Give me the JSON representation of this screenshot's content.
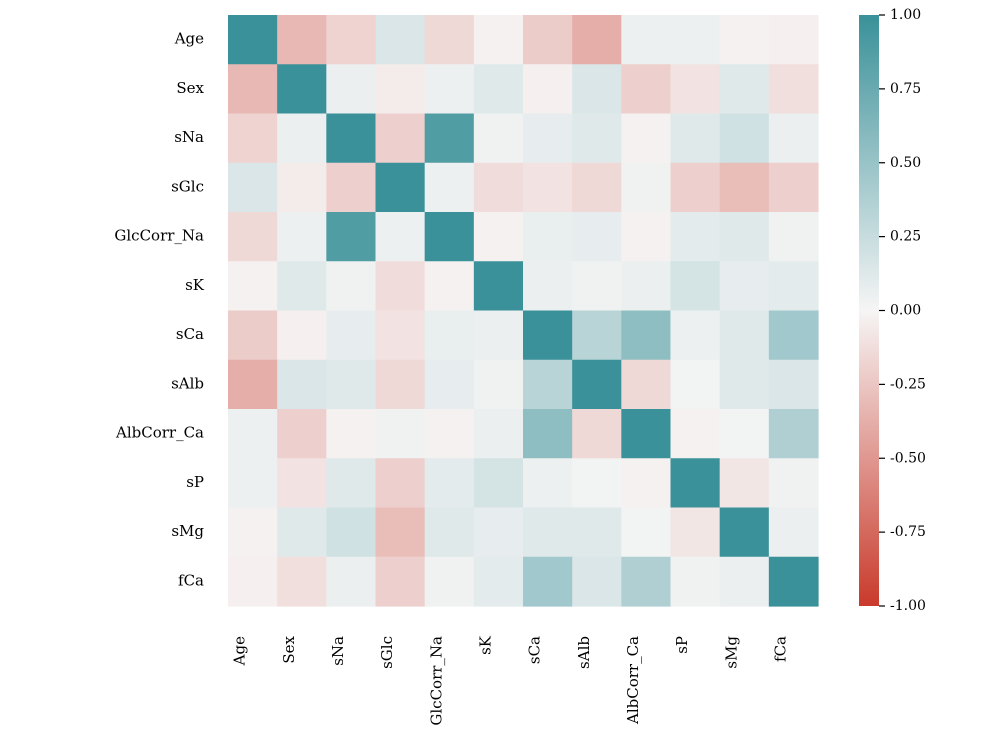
{
  "chart_data": {
    "type": "heatmap",
    "title": "",
    "xlabel": "",
    "ylabel": "",
    "variables": [
      "Age",
      "Sex",
      "sNa",
      "sGlc",
      "GlcCorr_Na",
      "sK",
      "sCa",
      "sAlb",
      "AlbCorr_Ca",
      "sP",
      "sMg",
      "fCa"
    ],
    "matrix": [
      [
        1.0,
        -0.32,
        -0.18,
        0.15,
        -0.15,
        -0.02,
        -0.22,
        -0.38,
        0.05,
        0.05,
        -0.02,
        -0.03
      ],
      [
        -0.32,
        1.0,
        0.06,
        -0.05,
        0.05,
        0.12,
        -0.03,
        0.15,
        -0.2,
        -0.1,
        0.12,
        -0.12
      ],
      [
        -0.18,
        0.06,
        1.0,
        -0.2,
        0.88,
        0.03,
        0.08,
        0.12,
        -0.02,
        0.12,
        0.2,
        0.06
      ],
      [
        0.15,
        -0.05,
        -0.2,
        1.0,
        0.05,
        -0.13,
        -0.1,
        -0.15,
        0.03,
        -0.2,
        -0.3,
        -0.2
      ],
      [
        -0.15,
        0.05,
        0.88,
        0.05,
        1.0,
        -0.02,
        0.07,
        0.08,
        -0.02,
        0.1,
        0.12,
        0.03
      ],
      [
        -0.02,
        0.12,
        0.03,
        -0.13,
        -0.02,
        1.0,
        0.06,
        0.03,
        0.06,
        0.18,
        0.08,
        0.1
      ],
      [
        -0.22,
        -0.03,
        0.08,
        -0.1,
        0.07,
        0.06,
        1.0,
        0.33,
        0.55,
        0.05,
        0.12,
        0.45
      ],
      [
        -0.38,
        0.15,
        0.12,
        -0.15,
        0.08,
        0.03,
        0.33,
        1.0,
        -0.15,
        0.02,
        0.12,
        0.15
      ],
      [
        0.05,
        -0.2,
        -0.02,
        0.03,
        -0.02,
        0.06,
        0.55,
        -0.15,
        1.0,
        -0.02,
        0.02,
        0.38
      ],
      [
        0.05,
        -0.1,
        0.12,
        -0.2,
        0.1,
        0.18,
        0.05,
        0.02,
        -0.02,
        1.0,
        -0.08,
        0.03
      ],
      [
        -0.02,
        0.12,
        0.2,
        -0.3,
        0.12,
        0.08,
        0.12,
        0.12,
        0.02,
        -0.08,
        1.0,
        0.06
      ],
      [
        -0.03,
        -0.12,
        0.06,
        -0.2,
        0.03,
        0.1,
        0.45,
        0.15,
        0.38,
        0.03,
        0.06,
        1.0
      ]
    ],
    "colorbar": {
      "vmin": -1.0,
      "vmax": 1.0,
      "ticks": [
        {
          "value": 1.0,
          "label": "1.00"
        },
        {
          "value": 0.75,
          "label": "0.75"
        },
        {
          "value": 0.5,
          "label": "0.50"
        },
        {
          "value": 0.25,
          "label": "0.25"
        },
        {
          "value": 0.0,
          "label": "0.00"
        },
        {
          "value": -0.25,
          "label": "-0.25"
        },
        {
          "value": -0.5,
          "label": "-0.50"
        },
        {
          "value": -0.75,
          "label": "-0.75"
        },
        {
          "value": -1.0,
          "label": "-1.00"
        }
      ],
      "colormap": "diverging red-white-teal",
      "color_low": "#c93a2b",
      "color_mid": "#f6f5f5",
      "color_high": "#3a9199"
    }
  }
}
